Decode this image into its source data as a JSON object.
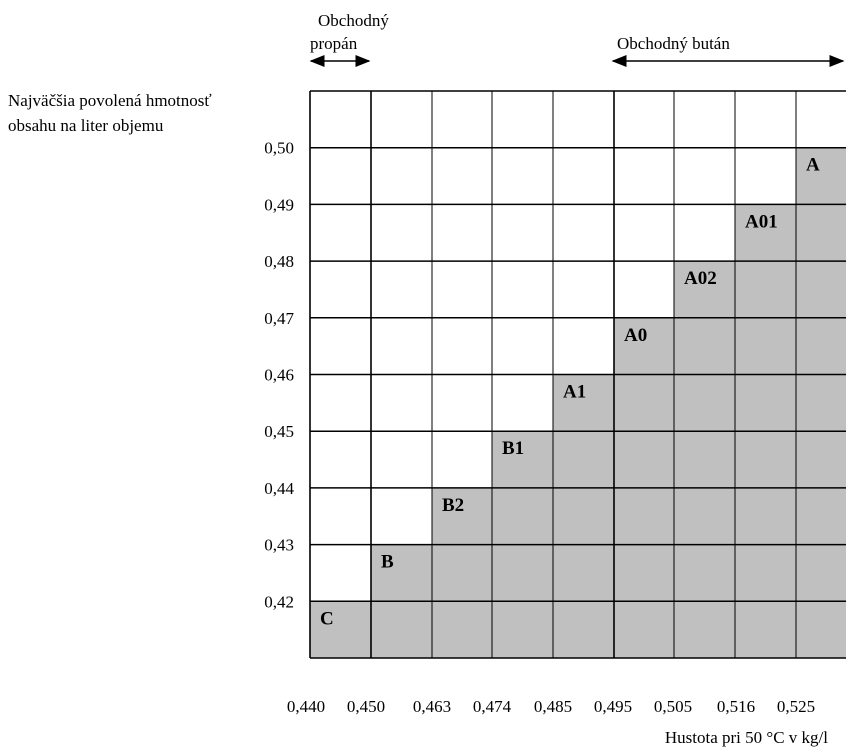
{
  "chart_data": {
    "type": "bar",
    "title": "",
    "ylabel_lines": [
      "Najväčšia povolená hmotnosť",
      "obsahu na liter objemu"
    ],
    "xlabel": "Hustota pri 50 °C v kg/l",
    "propane_label_lines": [
      "Obchodný",
      "propán"
    ],
    "butane_label": "Obchodný bután",
    "yticks": [
      "0,42",
      "0,43",
      "0,44",
      "0,45",
      "0,46",
      "0,47",
      "0,48",
      "0,49",
      "0,50"
    ],
    "xticks": [
      "0,440",
      "0,450",
      "0,463",
      "0,474",
      "0,485",
      "0,495",
      "0,505",
      "0,516",
      "0,525"
    ],
    "ylim": [
      0.41,
      0.51
    ],
    "grid": true,
    "bars": [
      {
        "label": "C",
        "value": 0.42
      },
      {
        "label": "B",
        "value": 0.43
      },
      {
        "label": "B2",
        "value": 0.44
      },
      {
        "label": "B1",
        "value": 0.45
      },
      {
        "label": "A1",
        "value": 0.46
      },
      {
        "label": "A0",
        "value": 0.47
      },
      {
        "label": "A02",
        "value": 0.48
      },
      {
        "label": "A01",
        "value": 0.49
      },
      {
        "label": "A",
        "value": 0.5
      }
    ],
    "bar_color": "#c0c0c0"
  }
}
